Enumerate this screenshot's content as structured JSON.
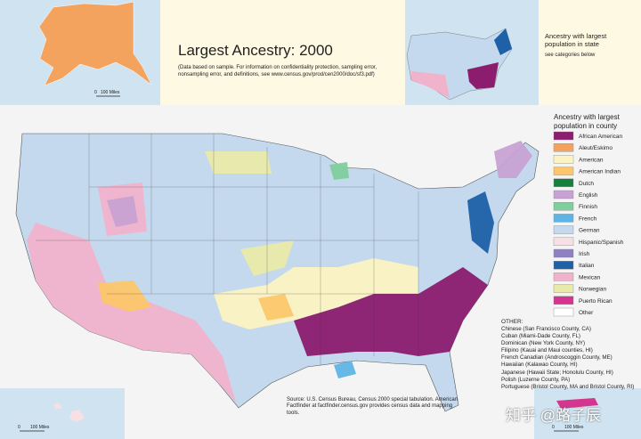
{
  "header": {
    "title": "Largest Ancestry: 2000",
    "note": "(Data based on sample. For information on confidentiality protection, sampling error, nonsampling error, and definitions, see www.census.gov/prod/cen2000/doc/sf3.pdf)"
  },
  "alaska_inset": {
    "scale_start": "0",
    "scale_end": "100 Miles"
  },
  "state_inset": {
    "title": "Ancestry with largest population in state",
    "note": "see categories below"
  },
  "legend": {
    "title": "Ancestry with largest population in county",
    "items": [
      {
        "label": "African American",
        "color": "#8b1c6e"
      },
      {
        "label": "Aleut/Eskimo",
        "color": "#f4a35e"
      },
      {
        "label": "American",
        "color": "#fbf3c2"
      },
      {
        "label": "American Indian",
        "color": "#fcc76c"
      },
      {
        "label": "Dutch",
        "color": "#16803d"
      },
      {
        "label": "English",
        "color": "#c7a2d3"
      },
      {
        "label": "Finnish",
        "color": "#7fcf9d"
      },
      {
        "label": "French",
        "color": "#5eb4e4"
      },
      {
        "label": "German",
        "color": "#c5d9ee"
      },
      {
        "label": "Hispanic/Spanish",
        "color": "#f6e0e4"
      },
      {
        "label": "Irish",
        "color": "#8e80c2"
      },
      {
        "label": "Italian",
        "color": "#1e61a6"
      },
      {
        "label": "Mexican",
        "color": "#f1b3cb"
      },
      {
        "label": "Norwegian",
        "color": "#e9eaa9"
      },
      {
        "label": "Puerto Rican",
        "color": "#d3358f"
      },
      {
        "label": "Other",
        "color": "#ffffff"
      }
    ]
  },
  "other": {
    "title": "OTHER:",
    "items": [
      "Chinese (San Francisco County, CA)",
      "Cuban (Miami-Dade County, FL)",
      "Dominican (New York County, NY)",
      "Filipino (Kauai and Maui counties, HI)",
      "French Canadian (Androscoggin County, ME)",
      "Hawaiian (Kalawao County, HI)",
      "Japanese (Hawaii State; Honolulu County, HI)",
      "Polish (Luzerne County, PA)",
      "Portuguese (Bristol County, MA and Bristol County, RI)"
    ]
  },
  "source": "Source: U.S. Census Bureau, Census 2000 special tabulation. American Factfinder at factfinder.census.gov provides census data and mapping tools.",
  "hawaii_inset": {
    "scale_start": "0",
    "scale_end": "100 Miles"
  },
  "puerto_rico_inset": {
    "scale_start": "0",
    "scale_end": "100 Miles"
  },
  "watermark": "知乎 @路子辰"
}
